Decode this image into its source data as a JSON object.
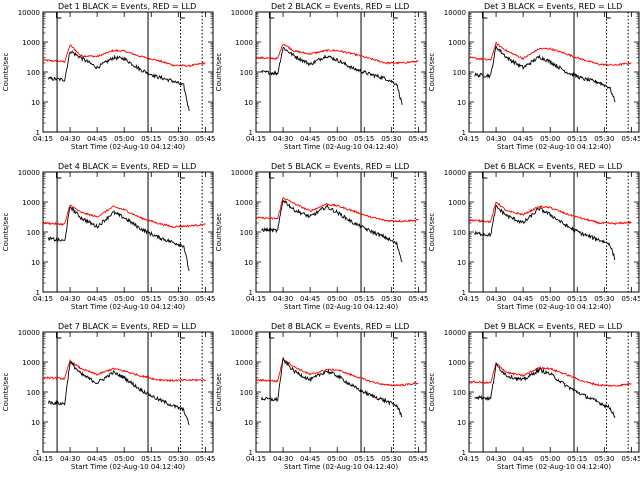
{
  "figure": {
    "panel_title_template": "Det {n} BLACK = Events, RED = LLD",
    "ylabel": "Counts/sec",
    "xlabel": "Start Time (02-Aug-10 04:12:40)"
  },
  "chart_data": {
    "type": "line",
    "scale": "log",
    "ylim": [
      1,
      10000
    ],
    "xlim_minutes_label_range": [
      "04:15",
      "05:45"
    ],
    "y_tick_labels": [
      "1",
      "10",
      "100",
      "1000",
      "10000"
    ],
    "x_tick_labels": [
      "04:15",
      "04:30",
      "04:45",
      "05:00",
      "05:15",
      "05:30",
      "05:45"
    ],
    "colors": {
      "events": "#000000",
      "lld": "#ff0000"
    },
    "panels": [
      {
        "det": "1",
        "events": [
          [
            4.3,
            60
          ],
          [
            4.45,
            55
          ],
          [
            4.5,
            500
          ],
          [
            4.6,
            300
          ],
          [
            4.75,
            140
          ],
          [
            4.9,
            300
          ],
          [
            5.0,
            280
          ],
          [
            5.15,
            120
          ],
          [
            5.3,
            70
          ],
          [
            5.45,
            50
          ],
          [
            5.55,
            35
          ],
          [
            5.6,
            5
          ]
        ],
        "lld": [
          [
            4.25,
            250
          ],
          [
            4.45,
            220
          ],
          [
            4.5,
            800
          ],
          [
            4.6,
            350
          ],
          [
            4.75,
            330
          ],
          [
            4.9,
            520
          ],
          [
            5.0,
            500
          ],
          [
            5.15,
            330
          ],
          [
            5.3,
            250
          ],
          [
            5.45,
            170
          ],
          [
            5.6,
            160
          ],
          [
            5.75,
            200
          ]
        ]
      },
      {
        "det": "2",
        "events": [
          [
            4.3,
            100
          ],
          [
            4.45,
            90
          ],
          [
            4.5,
            650
          ],
          [
            4.6,
            350
          ],
          [
            4.75,
            180
          ],
          [
            4.9,
            350
          ],
          [
            5.0,
            250
          ],
          [
            5.15,
            130
          ],
          [
            5.3,
            85
          ],
          [
            5.45,
            60
          ],
          [
            5.55,
            40
          ],
          [
            5.6,
            8
          ]
        ],
        "lld": [
          [
            4.25,
            300
          ],
          [
            4.45,
            280
          ],
          [
            4.5,
            900
          ],
          [
            4.6,
            500
          ],
          [
            4.75,
            400
          ],
          [
            4.9,
            520
          ],
          [
            5.0,
            520
          ],
          [
            5.15,
            400
          ],
          [
            5.3,
            280
          ],
          [
            5.45,
            200
          ],
          [
            5.6,
            200
          ],
          [
            5.75,
            230
          ]
        ]
      },
      {
        "det": "3",
        "events": [
          [
            4.3,
            80
          ],
          [
            4.45,
            75
          ],
          [
            4.5,
            700
          ],
          [
            4.6,
            300
          ],
          [
            4.75,
            140
          ],
          [
            4.9,
            320
          ],
          [
            5.0,
            220
          ],
          [
            5.15,
            100
          ],
          [
            5.3,
            60
          ],
          [
            5.45,
            45
          ],
          [
            5.55,
            30
          ],
          [
            5.6,
            10
          ]
        ],
        "lld": [
          [
            4.25,
            300
          ],
          [
            4.45,
            250
          ],
          [
            4.5,
            900
          ],
          [
            4.6,
            500
          ],
          [
            4.75,
            280
          ],
          [
            4.9,
            600
          ],
          [
            5.0,
            600
          ],
          [
            5.15,
            400
          ],
          [
            5.3,
            260
          ],
          [
            5.45,
            180
          ],
          [
            5.6,
            170
          ],
          [
            5.75,
            200
          ]
        ]
      },
      {
        "det": "4",
        "events": [
          [
            4.3,
            60
          ],
          [
            4.45,
            50
          ],
          [
            4.5,
            700
          ],
          [
            4.6,
            300
          ],
          [
            4.75,
            150
          ],
          [
            4.9,
            450
          ],
          [
            5.0,
            300
          ],
          [
            5.15,
            130
          ],
          [
            5.3,
            70
          ],
          [
            5.45,
            45
          ],
          [
            5.55,
            35
          ],
          [
            5.6,
            5
          ]
        ],
        "lld": [
          [
            4.25,
            200
          ],
          [
            4.45,
            180
          ],
          [
            4.5,
            800
          ],
          [
            4.6,
            450
          ],
          [
            4.75,
            320
          ],
          [
            4.9,
            700
          ],
          [
            5.0,
            550
          ],
          [
            5.15,
            300
          ],
          [
            5.3,
            200
          ],
          [
            5.45,
            150
          ],
          [
            5.6,
            160
          ],
          [
            5.75,
            180
          ]
        ]
      },
      {
        "det": "5",
        "events": [
          [
            4.3,
            120
          ],
          [
            4.45,
            110
          ],
          [
            4.5,
            1200
          ],
          [
            4.6,
            550
          ],
          [
            4.75,
            320
          ],
          [
            4.9,
            700
          ],
          [
            5.0,
            450
          ],
          [
            5.15,
            200
          ],
          [
            5.3,
            110
          ],
          [
            5.45,
            65
          ],
          [
            5.55,
            40
          ],
          [
            5.6,
            10
          ]
        ],
        "lld": [
          [
            4.25,
            300
          ],
          [
            4.45,
            280
          ],
          [
            4.5,
            1400
          ],
          [
            4.6,
            900
          ],
          [
            4.75,
            500
          ],
          [
            4.9,
            850
          ],
          [
            5.0,
            750
          ],
          [
            5.15,
            500
          ],
          [
            5.3,
            320
          ],
          [
            5.45,
            240
          ],
          [
            5.6,
            230
          ],
          [
            5.75,
            250
          ]
        ]
      },
      {
        "det": "6",
        "events": [
          [
            4.3,
            90
          ],
          [
            4.45,
            80
          ],
          [
            4.5,
            700
          ],
          [
            4.6,
            350
          ],
          [
            4.75,
            200
          ],
          [
            4.9,
            600
          ],
          [
            5.0,
            380
          ],
          [
            5.15,
            160
          ],
          [
            5.3,
            85
          ],
          [
            5.45,
            55
          ],
          [
            5.55,
            40
          ],
          [
            5.6,
            12
          ]
        ],
        "lld": [
          [
            4.25,
            250
          ],
          [
            4.45,
            220
          ],
          [
            4.5,
            1000
          ],
          [
            4.6,
            500
          ],
          [
            4.75,
            380
          ],
          [
            4.9,
            700
          ],
          [
            5.0,
            650
          ],
          [
            5.15,
            400
          ],
          [
            5.3,
            280
          ],
          [
            5.45,
            200
          ],
          [
            5.6,
            190
          ],
          [
            5.75,
            210
          ]
        ]
      },
      {
        "det": "7",
        "events": [
          [
            4.3,
            45
          ],
          [
            4.45,
            40
          ],
          [
            4.5,
            1000
          ],
          [
            4.6,
            400
          ],
          [
            4.75,
            200
          ],
          [
            4.9,
            450
          ],
          [
            5.0,
            300
          ],
          [
            5.15,
            120
          ],
          [
            5.3,
            60
          ],
          [
            5.45,
            35
          ],
          [
            5.55,
            25
          ],
          [
            5.6,
            8
          ]
        ],
        "lld": [
          [
            4.25,
            300
          ],
          [
            4.45,
            280
          ],
          [
            4.5,
            1100
          ],
          [
            4.6,
            600
          ],
          [
            4.75,
            380
          ],
          [
            4.9,
            600
          ],
          [
            5.0,
            500
          ],
          [
            5.15,
            350
          ],
          [
            5.3,
            260
          ],
          [
            5.45,
            240
          ],
          [
            5.6,
            250
          ],
          [
            5.75,
            250
          ]
        ]
      },
      {
        "det": "8",
        "events": [
          [
            4.3,
            60
          ],
          [
            4.45,
            55
          ],
          [
            4.5,
            1200
          ],
          [
            4.6,
            500
          ],
          [
            4.75,
            250
          ],
          [
            4.9,
            500
          ],
          [
            5.0,
            350
          ],
          [
            5.15,
            150
          ],
          [
            5.3,
            80
          ],
          [
            5.45,
            50
          ],
          [
            5.55,
            35
          ],
          [
            5.6,
            15
          ]
        ],
        "lld": [
          [
            4.25,
            250
          ],
          [
            4.45,
            230
          ],
          [
            4.5,
            1300
          ],
          [
            4.6,
            700
          ],
          [
            4.75,
            380
          ],
          [
            4.9,
            550
          ],
          [
            5.0,
            550
          ],
          [
            5.15,
            350
          ],
          [
            5.3,
            230
          ],
          [
            5.45,
            170
          ],
          [
            5.6,
            170
          ],
          [
            5.75,
            200
          ]
        ]
      },
      {
        "det": "9",
        "events": [
          [
            4.3,
            70
          ],
          [
            4.45,
            60
          ],
          [
            4.5,
            800
          ],
          [
            4.6,
            350
          ],
          [
            4.75,
            250
          ],
          [
            4.9,
            550
          ],
          [
            5.0,
            400
          ],
          [
            5.15,
            160
          ],
          [
            5.3,
            80
          ],
          [
            5.45,
            45
          ],
          [
            5.55,
            30
          ],
          [
            5.6,
            15
          ]
        ],
        "lld": [
          [
            4.25,
            220
          ],
          [
            4.45,
            200
          ],
          [
            4.5,
            900
          ],
          [
            4.6,
            450
          ],
          [
            4.75,
            350
          ],
          [
            4.9,
            650
          ],
          [
            5.0,
            600
          ],
          [
            5.15,
            380
          ],
          [
            5.3,
            230
          ],
          [
            5.45,
            170
          ],
          [
            5.6,
            160
          ],
          [
            5.75,
            190
          ]
        ]
      }
    ]
  }
}
